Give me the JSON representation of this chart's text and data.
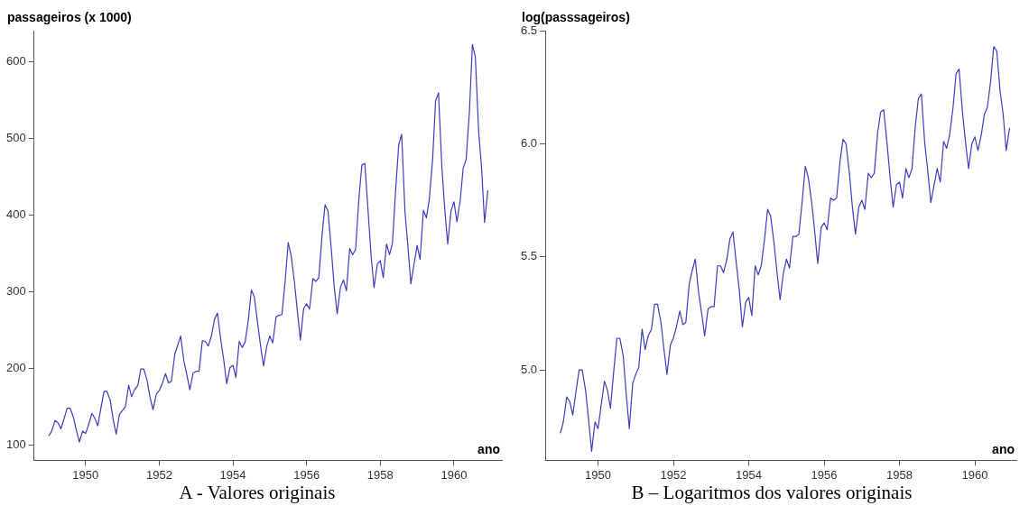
{
  "chart_data": [
    {
      "type": "line",
      "ylabel": "passageiros (x 1000)",
      "xlabel": "ano",
      "annotations": [
        "A - Valores originais"
      ],
      "x": [
        1949.0,
        1949.08,
        1949.17,
        1949.25,
        1949.33,
        1949.42,
        1949.5,
        1949.58,
        1949.67,
        1949.75,
        1949.83,
        1949.92,
        1950.0,
        1950.08,
        1950.17,
        1950.25,
        1950.33,
        1950.42,
        1950.5,
        1950.58,
        1950.67,
        1950.75,
        1950.83,
        1950.92,
        1951.0,
        1951.08,
        1951.17,
        1951.25,
        1951.33,
        1951.42,
        1951.5,
        1951.58,
        1951.67,
        1951.75,
        1951.83,
        1951.92,
        1952.0,
        1952.08,
        1952.17,
        1952.25,
        1952.33,
        1952.42,
        1952.5,
        1952.58,
        1952.67,
        1952.75,
        1952.83,
        1952.92,
        1953.0,
        1953.08,
        1953.17,
        1953.25,
        1953.33,
        1953.42,
        1953.5,
        1953.58,
        1953.67,
        1953.75,
        1953.83,
        1953.92,
        1954.0,
        1954.08,
        1954.17,
        1954.25,
        1954.33,
        1954.42,
        1954.5,
        1954.58,
        1954.67,
        1954.75,
        1954.83,
        1954.92,
        1955.0,
        1955.08,
        1955.17,
        1955.25,
        1955.33,
        1955.42,
        1955.5,
        1955.58,
        1955.67,
        1955.75,
        1955.83,
        1955.92,
        1956.0,
        1956.08,
        1956.17,
        1956.25,
        1956.33,
        1956.42,
        1956.5,
        1956.58,
        1956.67,
        1956.75,
        1956.83,
        1956.92,
        1957.0,
        1957.08,
        1957.17,
        1957.25,
        1957.33,
        1957.42,
        1957.5,
        1957.58,
        1957.67,
        1957.75,
        1957.83,
        1957.92,
        1958.0,
        1958.08,
        1958.17,
        1958.25,
        1958.33,
        1958.42,
        1958.5,
        1958.58,
        1958.67,
        1958.75,
        1958.83,
        1958.92,
        1959.0,
        1959.08,
        1959.17,
        1959.25,
        1959.33,
        1959.42,
        1959.5,
        1959.58,
        1959.67,
        1959.75,
        1959.83,
        1959.92,
        1960.0,
        1960.08,
        1960.17,
        1960.25,
        1960.33,
        1960.42,
        1960.5,
        1960.58,
        1960.67,
        1960.75,
        1960.83,
        1960.92
      ],
      "series": [
        {
          "color": "#3c3cc0",
          "values": [
            112,
            118,
            132,
            129,
            121,
            135,
            148,
            148,
            136,
            119,
            104,
            118,
            115,
            126,
            141,
            135,
            125,
            149,
            170,
            170,
            158,
            133,
            114,
            140,
            145,
            150,
            178,
            163,
            172,
            178,
            199,
            199,
            184,
            162,
            146,
            166,
            171,
            180,
            193,
            181,
            183,
            218,
            230,
            242,
            209,
            191,
            172,
            194,
            196,
            196,
            236,
            235,
            229,
            243,
            264,
            272,
            237,
            211,
            180,
            201,
            204,
            188,
            235,
            227,
            234,
            264,
            302,
            293,
            259,
            229,
            203,
            229,
            242,
            233,
            267,
            269,
            270,
            315,
            364,
            347,
            312,
            274,
            237,
            278,
            284,
            277,
            317,
            313,
            318,
            374,
            413,
            405,
            355,
            306,
            271,
            306,
            315,
            301,
            356,
            348,
            355,
            422,
            465,
            467,
            404,
            347,
            305,
            336,
            340,
            318,
            362,
            348,
            363,
            435,
            491,
            505,
            404,
            359,
            310,
            337,
            360,
            342,
            406,
            396,
            420,
            472,
            548,
            559,
            463,
            407,
            362,
            405,
            417,
            391,
            419,
            461,
            472,
            535,
            622,
            606,
            508,
            461,
            390,
            432
          ]
        }
      ],
      "xlim": [
        1948.6,
        1961.3
      ],
      "xticks": [
        1950,
        1952,
        1954,
        1956,
        1958,
        1960
      ],
      "ylim": [
        80,
        640
      ],
      "yticks": [
        100,
        200,
        300,
        400,
        500,
        600
      ]
    },
    {
      "type": "line",
      "ylabel": "log(passsageiros)",
      "xlabel": "ano",
      "annotations": [
        "B – Logaritmos dos valores originais"
      ],
      "x": [
        1949.0,
        1949.08,
        1949.17,
        1949.25,
        1949.33,
        1949.42,
        1949.5,
        1949.58,
        1949.67,
        1949.75,
        1949.83,
        1949.92,
        1950.0,
        1950.08,
        1950.17,
        1950.25,
        1950.33,
        1950.42,
        1950.5,
        1950.58,
        1950.67,
        1950.75,
        1950.83,
        1950.92,
        1951.0,
        1951.08,
        1951.17,
        1951.25,
        1951.33,
        1951.42,
        1951.5,
        1951.58,
        1951.67,
        1951.75,
        1951.83,
        1951.92,
        1952.0,
        1952.08,
        1952.17,
        1952.25,
        1952.33,
        1952.42,
        1952.5,
        1952.58,
        1952.67,
        1952.75,
        1952.83,
        1952.92,
        1953.0,
        1953.08,
        1953.17,
        1953.25,
        1953.33,
        1953.42,
        1953.5,
        1953.58,
        1953.67,
        1953.75,
        1953.83,
        1953.92,
        1954.0,
        1954.08,
        1954.17,
        1954.25,
        1954.33,
        1954.42,
        1954.5,
        1954.58,
        1954.67,
        1954.75,
        1954.83,
        1954.92,
        1955.0,
        1955.08,
        1955.17,
        1955.25,
        1955.33,
        1955.42,
        1955.5,
        1955.58,
        1955.67,
        1955.75,
        1955.83,
        1955.92,
        1956.0,
        1956.08,
        1956.17,
        1956.25,
        1956.33,
        1956.42,
        1956.5,
        1956.58,
        1956.67,
        1956.75,
        1956.83,
        1956.92,
        1957.0,
        1957.08,
        1957.17,
        1957.25,
        1957.33,
        1957.42,
        1957.5,
        1957.58,
        1957.67,
        1957.75,
        1957.83,
        1957.92,
        1958.0,
        1958.08,
        1958.17,
        1958.25,
        1958.33,
        1958.42,
        1958.5,
        1958.58,
        1958.67,
        1958.75,
        1958.83,
        1958.92,
        1959.0,
        1959.08,
        1959.17,
        1959.25,
        1959.33,
        1959.42,
        1959.5,
        1959.58,
        1959.67,
        1959.75,
        1959.83,
        1959.92,
        1960.0,
        1960.08,
        1960.17,
        1960.25,
        1960.33,
        1960.42,
        1960.5,
        1960.58,
        1960.67,
        1960.75,
        1960.83,
        1960.92
      ],
      "series": [
        {
          "color": "#3c3cc0",
          "values": [
            4.72,
            4.77,
            4.88,
            4.86,
            4.8,
            4.91,
            5.0,
            5.0,
            4.91,
            4.78,
            4.64,
            4.77,
            4.74,
            4.84,
            4.95,
            4.91,
            4.83,
            5.0,
            5.14,
            5.14,
            5.06,
            4.89,
            4.74,
            4.94,
            4.98,
            5.01,
            5.18,
            5.09,
            5.15,
            5.18,
            5.29,
            5.29,
            5.21,
            5.09,
            4.98,
            5.11,
            5.14,
            5.19,
            5.26,
            5.2,
            5.21,
            5.38,
            5.44,
            5.49,
            5.34,
            5.25,
            5.15,
            5.27,
            5.28,
            5.28,
            5.46,
            5.46,
            5.43,
            5.49,
            5.58,
            5.61,
            5.47,
            5.35,
            5.19,
            5.3,
            5.32,
            5.24,
            5.46,
            5.42,
            5.46,
            5.58,
            5.71,
            5.68,
            5.56,
            5.43,
            5.31,
            5.43,
            5.49,
            5.45,
            5.59,
            5.59,
            5.6,
            5.75,
            5.9,
            5.85,
            5.74,
            5.61,
            5.47,
            5.63,
            5.65,
            5.62,
            5.76,
            5.75,
            5.76,
            5.92,
            6.02,
            6.0,
            5.87,
            5.72,
            5.6,
            5.72,
            5.75,
            5.71,
            5.87,
            5.85,
            5.87,
            6.05,
            6.14,
            6.15,
            6.0,
            5.85,
            5.72,
            5.82,
            5.83,
            5.76,
            5.89,
            5.85,
            5.89,
            6.08,
            6.2,
            6.22,
            6.0,
            5.88,
            5.74,
            5.82,
            5.89,
            5.83,
            6.01,
            5.98,
            6.04,
            6.16,
            6.31,
            6.33,
            6.14,
            6.01,
            5.89,
            6.0,
            6.03,
            5.97,
            6.04,
            6.13,
            6.16,
            6.28,
            6.43,
            6.41,
            6.23,
            6.13,
            5.97,
            6.07
          ]
        }
      ],
      "xlim": [
        1948.6,
        1961.1
      ],
      "xticks": [
        1950,
        1952,
        1954,
        1956,
        1958,
        1960
      ],
      "ylim": [
        4.6,
        6.5
      ],
      "yticks": [
        {
          "value": 5.0,
          "label": "5.0"
        },
        {
          "value": 5.5,
          "label": "5.5"
        },
        {
          "value": 6.0,
          "label": "6.0"
        },
        {
          "value": 6.5,
          "label": "6.5"
        }
      ]
    }
  ]
}
